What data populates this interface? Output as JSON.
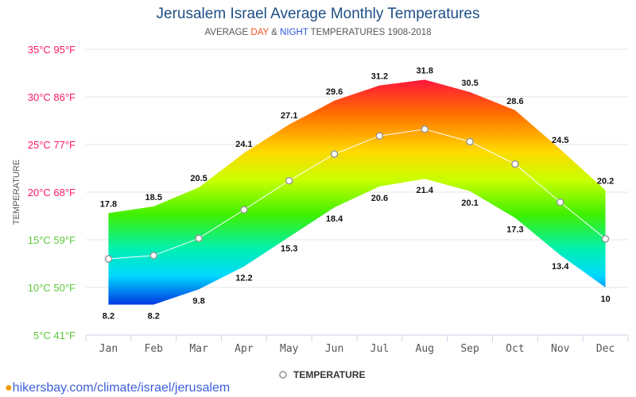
{
  "chart_data": {
    "type": "area",
    "title": "Jerusalem Israel Average Monthly Temperatures",
    "subtitle": {
      "pre": "AVERAGE ",
      "day": "DAY",
      "mid": " & ",
      "night": "NIGHT",
      "post": " TEMPERATURES 1908-2018"
    },
    "ylabel": "TEMPERATURE",
    "ylim": [
      5,
      35
    ],
    "yticks": [
      {
        "value": 35,
        "label": "35°C 95°F",
        "color": "#ff1a5e"
      },
      {
        "value": 30,
        "label": "30°C 86°F",
        "color": "#ff1a5e"
      },
      {
        "value": 25,
        "label": "25°C 77°F",
        "color": "#ff1a5e"
      },
      {
        "value": 20,
        "label": "20°C 68°F",
        "color": "#ff1a5e"
      },
      {
        "value": 15,
        "label": "15°C 59°F",
        "color": "#5cc93a"
      },
      {
        "value": 10,
        "label": "10°C 50°F",
        "color": "#5cc93a"
      },
      {
        "value": 5,
        "label": "5°C 41°F",
        "color": "#5cc93a"
      }
    ],
    "categories": [
      "Jan",
      "Feb",
      "Mar",
      "Apr",
      "May",
      "Jun",
      "Jul",
      "Aug",
      "Sep",
      "Oct",
      "Nov",
      "Dec"
    ],
    "day": [
      17.8,
      18.5,
      20.5,
      24.1,
      27.1,
      29.6,
      31.2,
      31.8,
      30.5,
      28.6,
      24.5,
      20.2
    ],
    "night": [
      8.2,
      8.2,
      9.8,
      12.2,
      15.3,
      18.4,
      20.6,
      21.4,
      20.1,
      17.3,
      13.4,
      10
    ],
    "series": [
      {
        "name": "TEMPERATURE",
        "values": [
          13,
          13.35,
          15.15,
          18.15,
          21.2,
          24,
          25.9,
          26.6,
          25.3,
          22.95,
          18.95,
          15.1
        ]
      }
    ],
    "legend": "bottom",
    "grid": true
  },
  "footer": {
    "link": "hikersbay.com/climate/israel/jerusalem",
    "icon": "map-pin-icon"
  }
}
